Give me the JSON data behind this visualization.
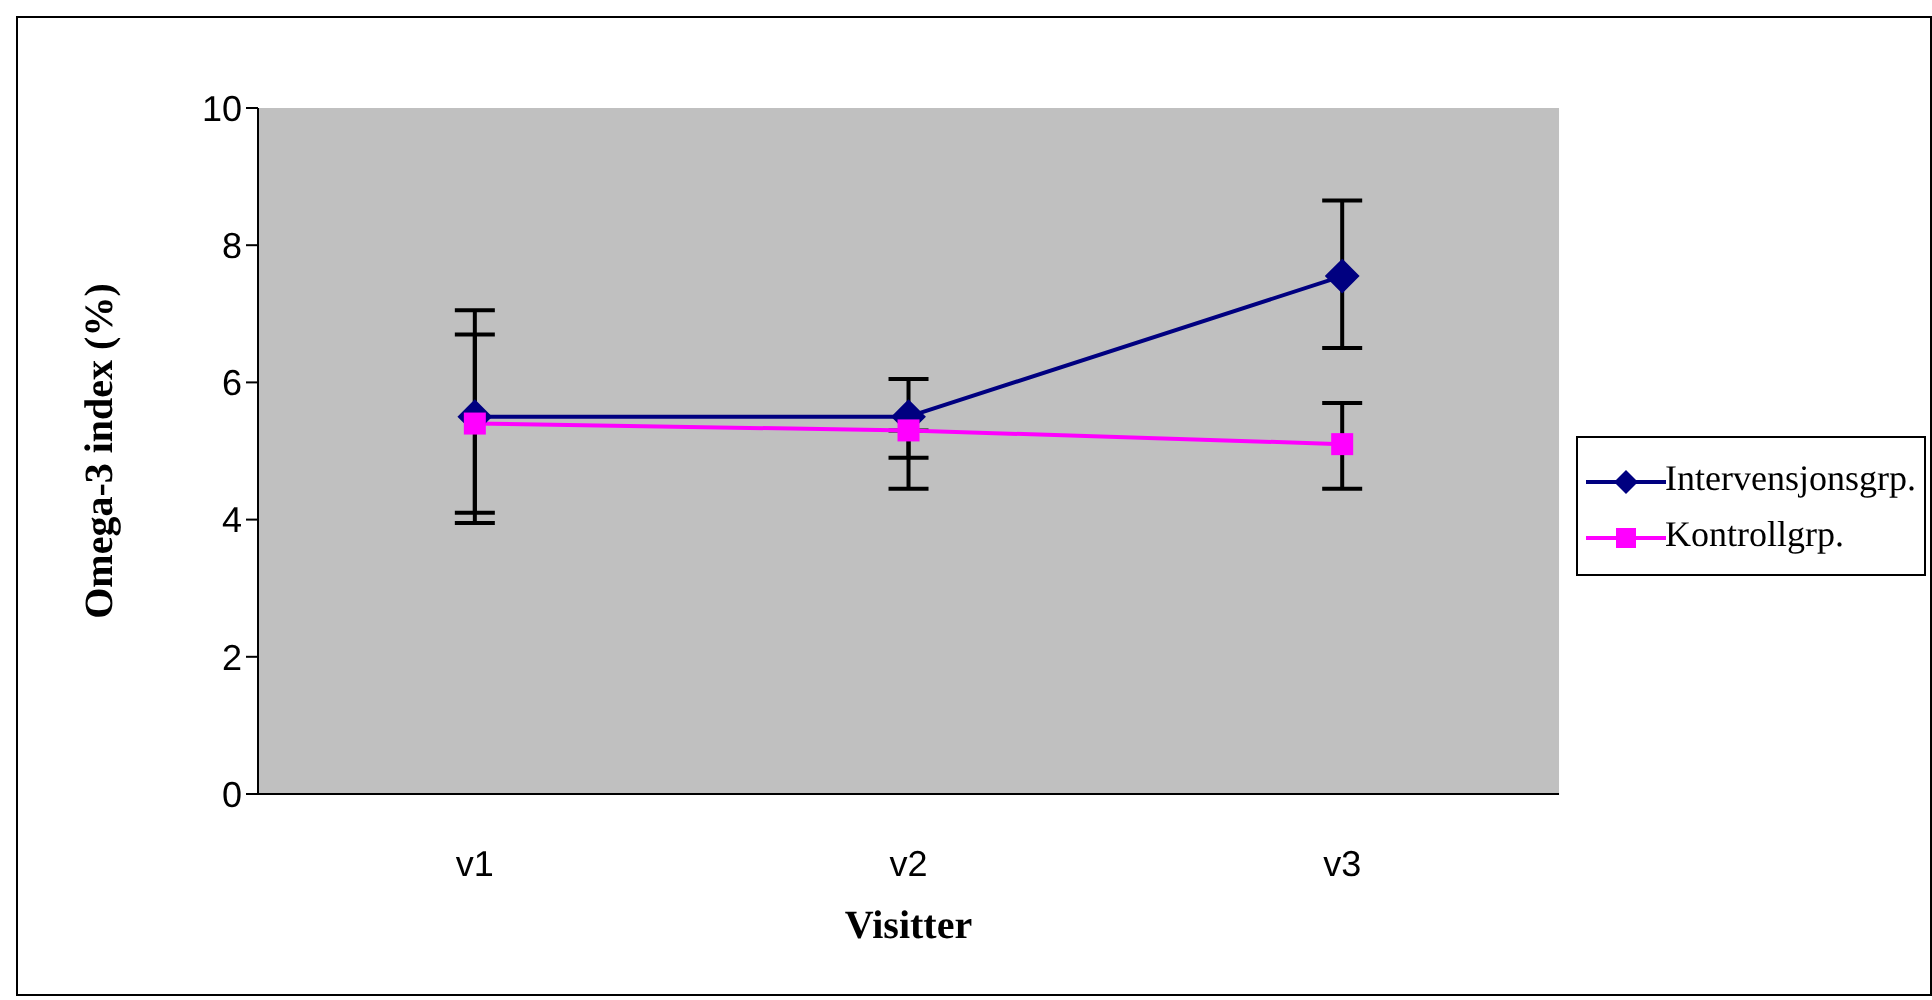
{
  "chart_data": {
    "type": "line",
    "xlabel": "Visitter",
    "ylabel": "Omega-3 index (%)",
    "categories": [
      "v1",
      "v2",
      "v3"
    ],
    "ylim": [
      0,
      10
    ],
    "yticks": [
      0,
      2,
      4,
      6,
      8,
      10
    ],
    "grid": false,
    "legend": "right",
    "line_style": "solid",
    "series": [
      {
        "name": "Intervensjonsgrp.",
        "color": "#000080",
        "marker": "diamond",
        "values": [
          5.5,
          5.5,
          7.55
        ],
        "errors": [
          [
            3.95,
            7.05
          ],
          [
            4.9,
            6.05
          ],
          [
            6.5,
            8.65
          ]
        ]
      },
      {
        "name": "Kontrollgrp.",
        "color": "#ff00ff",
        "marker": "square",
        "values": [
          5.4,
          5.3,
          5.1
        ],
        "errors": [
          [
            4.1,
            6.7
          ],
          [
            4.45,
            5.3
          ],
          [
            4.45,
            5.7
          ]
        ]
      }
    ]
  }
}
